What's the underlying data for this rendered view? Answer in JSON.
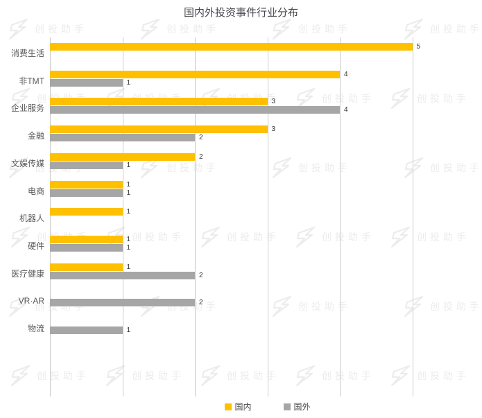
{
  "title": "国内外投资事件行业分布",
  "watermark": {
    "text": "创投助手",
    "logo": "z-lightning-logo",
    "color": "#ececec"
  },
  "legend": [
    {
      "label": "国内",
      "color": "#FFC000"
    },
    {
      "label": "国外",
      "color": "#A6A6A6"
    }
  ],
  "colors": {
    "domestic": "#FFC000",
    "foreign": "#A6A6A6",
    "gridline": "#cccccc",
    "title_text": "#45454d",
    "category_text": "#595959",
    "value_text": "#333333"
  },
  "chart_data": {
    "type": "bar",
    "orientation": "horizontal",
    "title": "国内外投资事件行业分布",
    "categories": [
      "消费生活",
      "非TMT",
      "企业服务",
      "金融",
      "文娱传媒",
      "电商",
      "机器人",
      "硬件",
      "医疗健康",
      "VR·AR",
      "物流"
    ],
    "series": [
      {
        "name": "国内",
        "color": "#FFC000",
        "values": [
          5,
          4,
          3,
          3,
          2,
          1,
          1,
          1,
          1,
          null,
          null
        ]
      },
      {
        "name": "国外",
        "color": "#A6A6A6",
        "values": [
          null,
          1,
          4,
          2,
          1,
          1,
          null,
          1,
          2,
          2,
          1
        ]
      }
    ],
    "xlim": [
      0,
      5
    ],
    "xlabel": "",
    "ylabel": "",
    "grid": "vertical-gridlines-only",
    "gridline_interval": 1,
    "value_labels": true,
    "legend_position": "bottom"
  }
}
